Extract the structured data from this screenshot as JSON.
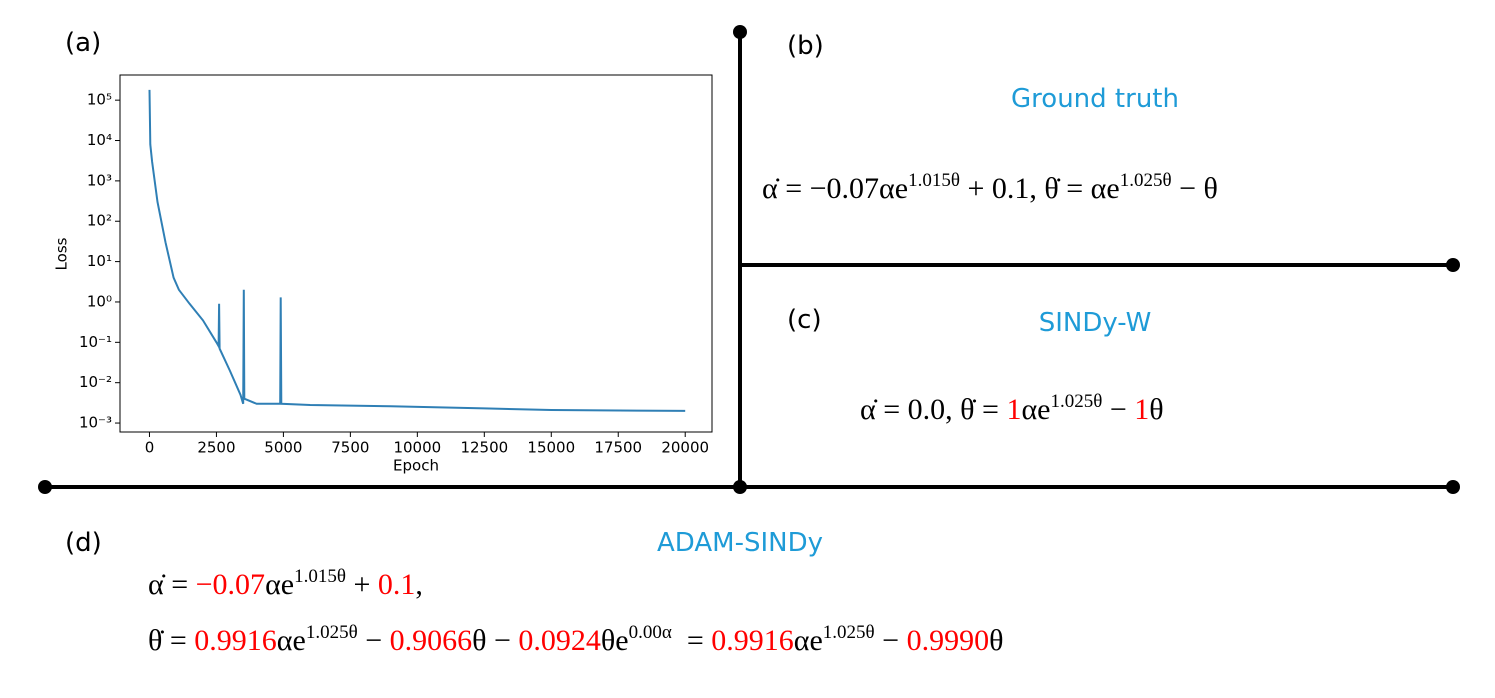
{
  "chart_data": {
    "type": "line",
    "log_y": true,
    "color": "#2f7fb5",
    "x_label": "Epoch",
    "y_label": "Loss",
    "x": [
      0,
      30,
      100,
      300,
      600,
      900,
      1100,
      1500,
      2000,
      2500,
      2580,
      2600,
      2620,
      3000,
      3400,
      3500,
      3520,
      3540,
      4000,
      4880,
      4900,
      4920,
      6000,
      9000,
      12500,
      15000,
      20000
    ],
    "values": [
      180000,
      8000,
      3000,
      300,
      30,
      4,
      2,
      0.9,
      0.35,
      0.1,
      0.08,
      0.9,
      0.07,
      0.02,
      0.005,
      0.003,
      2.0,
      0.004,
      0.003,
      0.003,
      1.3,
      0.003,
      0.0028,
      0.0026,
      0.0023,
      0.0021,
      0.002
    ],
    "xlim": [
      -1100,
      21000
    ],
    "xticks": [
      0,
      2500,
      5000,
      7500,
      10000,
      12500,
      15000,
      17500,
      20000
    ],
    "ylim": [
      0.0006,
      420000
    ],
    "yticks": [
      {
        "value": 0.001,
        "label": "10⁻³"
      },
      {
        "value": 0.01,
        "label": "10⁻²"
      },
      {
        "value": 0.1,
        "label": "10⁻¹"
      },
      {
        "value": 1,
        "label": "10⁰"
      },
      {
        "value": 10,
        "label": "10¹"
      },
      {
        "value": 100,
        "label": "10²"
      },
      {
        "value": 1000,
        "label": "10³"
      },
      {
        "value": 10000,
        "label": "10⁴"
      },
      {
        "value": 100000,
        "label": "10⁵"
      }
    ]
  },
  "panels": {
    "a": {
      "label": "(a)"
    },
    "b": {
      "label": "(b)",
      "title": "Ground truth",
      "equation": [
        {
          "text": "α̇ = −0.07αe"
        },
        {
          "text": "1.015θ",
          "sup": true
        },
        {
          "text": " + 0.1, θ̇ = αe"
        },
        {
          "text": "1.025θ",
          "sup": true
        },
        {
          "text": " − θ"
        }
      ]
    },
    "c": {
      "label": "(c)",
      "title": "SINDy-W",
      "equation": [
        {
          "text": "α̇ = 0.0, θ̇ = "
        },
        {
          "text": "1",
          "color": "#ff0000"
        },
        {
          "text": "αe"
        },
        {
          "text": "1.025θ",
          "sup": true
        },
        {
          "text": " − "
        },
        {
          "text": "1",
          "color": "#ff0000"
        },
        {
          "text": "θ"
        }
      ]
    },
    "d": {
      "label": "(d)",
      "title": "ADAM-SINDy",
      "equation": [
        {
          "text": "α̇ = "
        },
        {
          "text": "−0.07",
          "color": "#ff0000"
        },
        {
          "text": "αe"
        },
        {
          "text": "1.015θ",
          "sup": true
        },
        {
          "text": " + "
        },
        {
          "text": "0.1",
          "color": "#ff0000"
        },
        {
          "text": ","
        }
      ],
      "equation2": [
        {
          "text": "θ̇ = "
        },
        {
          "text": "0.9916",
          "color": "#ff0000"
        },
        {
          "text": "αe"
        },
        {
          "text": "1.025θ",
          "sup": true
        },
        {
          "text": " − "
        },
        {
          "text": "0.9066",
          "color": "#ff0000"
        },
        {
          "text": "θ − "
        },
        {
          "text": "0.0924",
          "color": "#ff0000"
        },
        {
          "text": "θe"
        },
        {
          "text": "0.00α",
          "sup": true
        },
        {
          "text": "  = "
        },
        {
          "text": "0.9916",
          "color": "#ff0000"
        },
        {
          "text": "αe"
        },
        {
          "text": "1.025θ",
          "sup": true
        },
        {
          "text": " − "
        },
        {
          "text": "0.9990",
          "color": "#ff0000"
        },
        {
          "text": "θ"
        }
      ]
    }
  }
}
